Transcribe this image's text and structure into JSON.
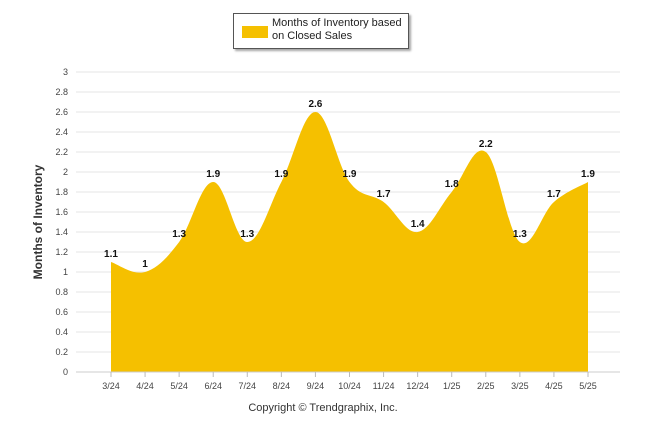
{
  "chart_data": {
    "type": "area",
    "categories": [
      "3/24",
      "4/24",
      "5/24",
      "6/24",
      "7/24",
      "8/24",
      "9/24",
      "10/24",
      "11/24",
      "12/24",
      "1/25",
      "2/25",
      "3/25",
      "4/25",
      "5/25"
    ],
    "series": [
      {
        "name": "Months of Inventory based on Closed Sales",
        "values": [
          1.1,
          1,
          1.3,
          1.9,
          1.3,
          1.9,
          2.6,
          1.9,
          1.7,
          1.4,
          1.8,
          2.2,
          1.3,
          1.7,
          1.9
        ],
        "color": "#f5c000"
      }
    ],
    "ylabel": "Months of Inventory",
    "xlabel": "",
    "ylim": [
      0,
      3
    ],
    "yticks": [
      "0",
      "0.2",
      "0.4",
      "0.6",
      "0.8",
      "1",
      "1.2",
      "1.4",
      "1.6",
      "1.8",
      "2",
      "2.2",
      "2.4",
      "2.6",
      "2.8",
      "3"
    ],
    "data_labels": [
      "1.1",
      "1",
      "1.3",
      "1.9",
      "1.3",
      "1.9",
      "2.6",
      "1.9",
      "1.7",
      "1.4",
      "1.8",
      "2.2",
      "1.3",
      "1.7",
      "1.9"
    ],
    "grid": true,
    "legend": {
      "position": "top-center",
      "lines": [
        "Months of Inventory based",
        "on Closed Sales"
      ]
    }
  },
  "footer": {
    "copyright": "Copyright © Trendgraphix, Inc."
  }
}
